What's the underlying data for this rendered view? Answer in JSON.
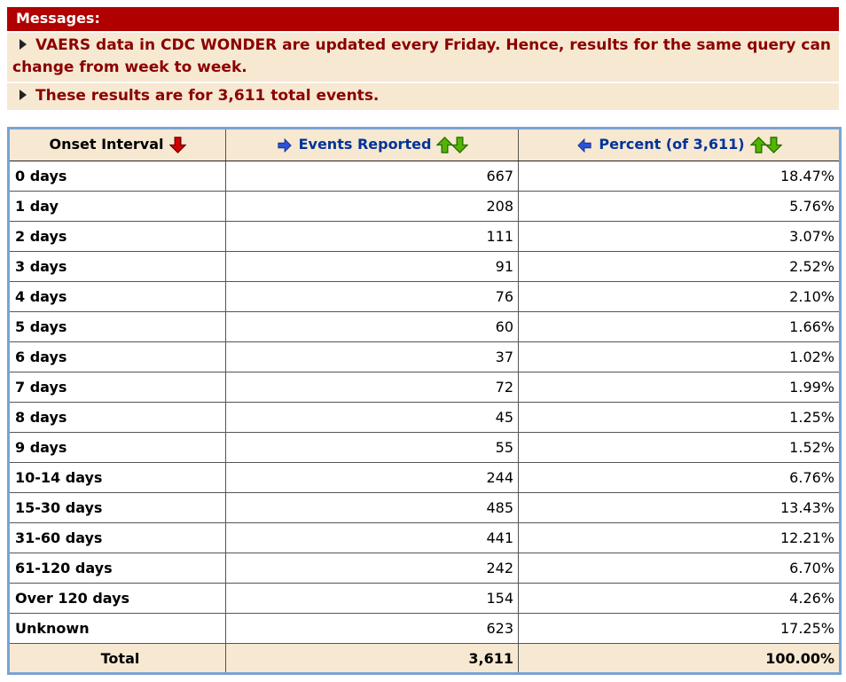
{
  "messages": {
    "title": "Messages:",
    "items": [
      "VAERS data in CDC WONDER are updated every Friday. Hence, results for the same query can change from week to week.",
      "These results are for 3,611 total events."
    ]
  },
  "table": {
    "columns": [
      {
        "label": "Onset Interval",
        "sort_icon": "red-down-arrow"
      },
      {
        "label": "Events Reported",
        "move_icon": "blue-right-arrow",
        "sort_icons": [
          "green-up-arrow",
          "green-down-arrow"
        ]
      },
      {
        "label": "Percent (of 3,611)",
        "move_icon": "blue-left-arrow",
        "sort_icons": [
          "green-up-arrow",
          "green-down-arrow"
        ]
      }
    ],
    "rows": [
      {
        "interval": "0 days",
        "events": "667",
        "percent": "18.47%"
      },
      {
        "interval": "1 day",
        "events": "208",
        "percent": "5.76%"
      },
      {
        "interval": "2 days",
        "events": "111",
        "percent": "3.07%"
      },
      {
        "interval": "3 days",
        "events": "91",
        "percent": "2.52%"
      },
      {
        "interval": "4 days",
        "events": "76",
        "percent": "2.10%"
      },
      {
        "interval": "5 days",
        "events": "60",
        "percent": "1.66%"
      },
      {
        "interval": "6 days",
        "events": "37",
        "percent": "1.02%"
      },
      {
        "interval": "7 days",
        "events": "72",
        "percent": "1.99%"
      },
      {
        "interval": "8 days",
        "events": "45",
        "percent": "1.25%"
      },
      {
        "interval": "9 days",
        "events": "55",
        "percent": "1.52%"
      },
      {
        "interval": "10-14 days",
        "events": "244",
        "percent": "6.76%"
      },
      {
        "interval": "15-30 days",
        "events": "485",
        "percent": "13.43%"
      },
      {
        "interval": "31-60 days",
        "events": "441",
        "percent": "12.21%"
      },
      {
        "interval": "61-120 days",
        "events": "242",
        "percent": "6.70%"
      },
      {
        "interval": "Over 120 days",
        "events": "154",
        "percent": "4.26%"
      },
      {
        "interval": "Unknown",
        "events": "623",
        "percent": "17.25%"
      }
    ],
    "total": {
      "interval": "Total",
      "events": "3,611",
      "percent": "100.00%"
    }
  },
  "colors": {
    "header_bar_bg": "#b00000",
    "message_text": "#8b0000",
    "panel_bg": "#f7e8d2",
    "table_border": "#7aa3d4",
    "column_header_text": "#003399",
    "sort_red": "#d40000",
    "sort_green": "#55b400",
    "move_blue": "#2b52d8"
  }
}
